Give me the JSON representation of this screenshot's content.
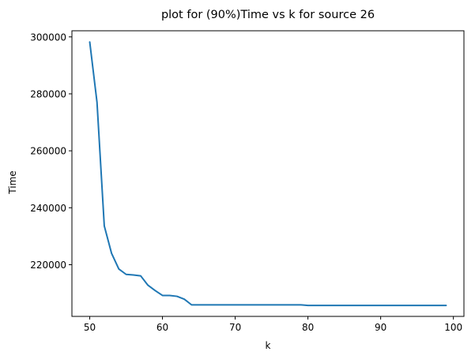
{
  "chart_data": {
    "type": "line",
    "title": "plot for (90%)Time vs k for source 26",
    "xlabel": "k",
    "ylabel": "Time",
    "xlim": [
      47.55,
      101.45
    ],
    "ylim": [
      201850,
      302150
    ],
    "xticks": [
      50,
      60,
      70,
      80,
      90,
      100
    ],
    "yticks": [
      220000,
      240000,
      260000,
      280000,
      300000
    ],
    "xtick_labels": [
      "50",
      "60",
      "70",
      "80",
      "90",
      "100"
    ],
    "ytick_labels": [
      "220000",
      "240000",
      "260000",
      "280000",
      "300000"
    ],
    "grid": false,
    "series": [
      {
        "color": "#1f77b4",
        "x": [
          50,
          51,
          52,
          53,
          54,
          55,
          56,
          57,
          58,
          59,
          60,
          61,
          62,
          63,
          64,
          65,
          66,
          67,
          68,
          69,
          70,
          71,
          72,
          73,
          74,
          75,
          76,
          77,
          78,
          79,
          80,
          81,
          82,
          83,
          84,
          85,
          86,
          87,
          88,
          89,
          90,
          91,
          92,
          93,
          94,
          95,
          96,
          97,
          98,
          99
        ],
        "y": [
          298200,
          277000,
          233600,
          224000,
          218500,
          216600,
          216400,
          216100,
          212800,
          210900,
          209200,
          209200,
          208900,
          207900,
          205900,
          205900,
          205900,
          205900,
          205900,
          205900,
          205900,
          205900,
          205900,
          205900,
          205900,
          205900,
          205900,
          205900,
          205900,
          205900,
          205700,
          205700,
          205700,
          205700,
          205700,
          205700,
          205700,
          205700,
          205700,
          205700,
          205700,
          205700,
          205700,
          205700,
          205700,
          205700,
          205700,
          205700,
          205700,
          205700
        ]
      }
    ]
  }
}
